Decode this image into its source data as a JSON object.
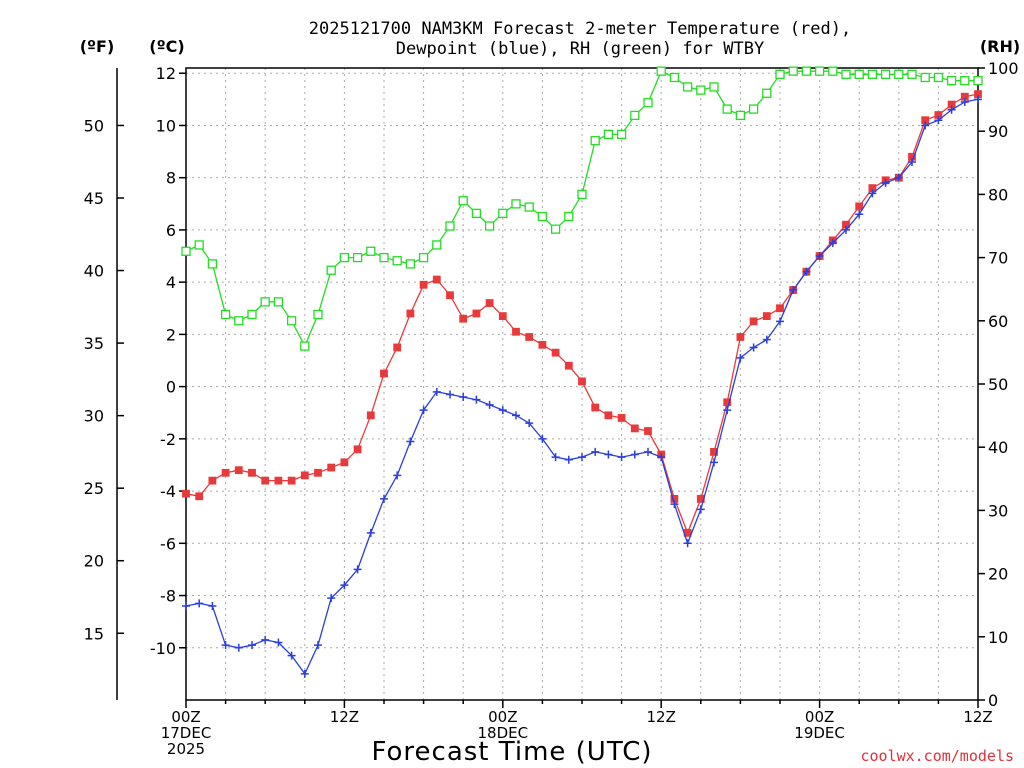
{
  "chart_data": {
    "type": "line",
    "title_line1": "2025121700 NAM3KM Forecast 2-meter Temperature (red),",
    "title_line2": "Dewpoint (blue), RH (green) for WTBY",
    "xlabel": "Forecast Time (UTC)",
    "credit": "coolwx.com/models",
    "units": {
      "fahrenheit": "(ºF)",
      "celsius": "(ºC)",
      "rh": "(RH)"
    },
    "xlim": [
      0,
      60
    ],
    "ylim_celsius": [
      -12,
      12.2
    ],
    "ylim_rh": [
      0,
      100
    ],
    "y_left_ticks": [
      "12",
      "10",
      "8",
      "6",
      "4",
      "2",
      "0",
      "-2",
      "-4",
      "-6",
      "-8",
      "-10"
    ],
    "y_left_tick_values": [
      12,
      10,
      8,
      6,
      4,
      2,
      0,
      -2,
      -4,
      -6,
      -8,
      -10
    ],
    "y_f_ticks": [
      "50",
      "45",
      "40",
      "35",
      "30",
      "25",
      "20",
      "15"
    ],
    "y_f_tick_values": [
      50,
      45,
      40,
      35,
      30,
      25,
      20,
      15
    ],
    "y_right_ticks": [
      "100",
      "90",
      "80",
      "70",
      "60",
      "50",
      "40",
      "30",
      "20",
      "10",
      "0"
    ],
    "y_right_tick_values": [
      100,
      90,
      80,
      70,
      60,
      50,
      40,
      30,
      20,
      10,
      0
    ],
    "x_ticks": [
      {
        "value": 0,
        "lines": [
          "00Z",
          "17DEC",
          "2025"
        ]
      },
      {
        "value": 12,
        "lines": [
          "12Z"
        ]
      },
      {
        "value": 24,
        "lines": [
          "00Z",
          "18DEC"
        ]
      },
      {
        "value": 36,
        "lines": [
          "12Z"
        ]
      },
      {
        "value": 48,
        "lines": [
          "00Z",
          "19DEC"
        ]
      },
      {
        "value": 60,
        "lines": [
          "12Z"
        ]
      }
    ],
    "series": [
      {
        "name": "Temperature",
        "color": "#e83a3a",
        "marker": "square-filled",
        "axis": "celsius",
        "x": [
          0,
          1,
          2,
          3,
          4,
          5,
          6,
          7,
          8,
          9,
          10,
          11,
          12,
          13,
          14,
          15,
          16,
          17,
          18,
          19,
          20,
          21,
          22,
          23,
          24,
          25,
          26,
          27,
          28,
          29,
          30,
          31,
          32,
          33,
          34,
          35,
          36,
          37,
          38,
          39,
          40,
          41,
          42,
          43,
          44,
          45,
          46,
          47,
          48,
          49,
          50,
          51,
          52,
          53,
          54,
          55,
          56,
          57,
          58,
          59,
          60
        ],
        "values": [
          -4.1,
          -4.2,
          -3.6,
          -3.3,
          -3.2,
          -3.3,
          -3.6,
          -3.6,
          -3.6,
          -3.4,
          -3.3,
          -3.1,
          -2.9,
          -2.4,
          -1.1,
          0.5,
          1.5,
          2.8,
          3.9,
          4.1,
          3.5,
          2.6,
          2.8,
          3.2,
          2.7,
          2.1,
          1.9,
          1.6,
          1.3,
          0.8,
          0.2,
          -0.8,
          -1.1,
          -1.2,
          -1.6,
          -1.7,
          -2.6,
          -4.3,
          -5.6,
          -4.3,
          -2.5,
          -0.6,
          1.9,
          2.5,
          2.7,
          3.0,
          3.7,
          4.4,
          5.0,
          5.6,
          6.2,
          6.9,
          7.6,
          7.9,
          8.0,
          8.8,
          10.2,
          10.4,
          10.8,
          11.1,
          11.2
        ]
      },
      {
        "name": "Dewpoint",
        "color": "#2a3ee0",
        "marker": "plus",
        "axis": "celsius",
        "x": [
          0,
          1,
          2,
          3,
          4,
          5,
          6,
          7,
          8,
          9,
          10,
          11,
          12,
          13,
          14,
          15,
          16,
          17,
          18,
          19,
          20,
          21,
          22,
          23,
          24,
          25,
          26,
          27,
          28,
          29,
          30,
          31,
          32,
          33,
          34,
          35,
          36,
          37,
          38,
          39,
          40,
          41,
          42,
          43,
          44,
          45,
          46,
          47,
          48,
          49,
          50,
          51,
          52,
          53,
          54,
          55,
          56,
          57,
          58,
          59,
          60
        ],
        "values": [
          -8.4,
          -8.3,
          -8.4,
          -9.9,
          -10.0,
          -9.9,
          -9.7,
          -9.8,
          -10.3,
          -11.0,
          -9.9,
          -8.1,
          -7.6,
          -7.0,
          -5.6,
          -4.3,
          -3.4,
          -2.1,
          -0.9,
          -0.2,
          -0.3,
          -0.4,
          -0.5,
          -0.7,
          -0.9,
          -1.1,
          -1.4,
          -2.0,
          -2.7,
          -2.8,
          -2.7,
          -2.5,
          -2.6,
          -2.7,
          -2.6,
          -2.5,
          -2.7,
          -4.5,
          -6.0,
          -4.7,
          -2.9,
          -0.9,
          1.1,
          1.5,
          1.8,
          2.5,
          3.7,
          4.4,
          5.0,
          5.5,
          6.0,
          6.6,
          7.4,
          7.8,
          8.0,
          8.6,
          10.0,
          10.2,
          10.6,
          10.9,
          11.0
        ]
      },
      {
        "name": "RH",
        "color": "#22dd22",
        "marker": "square-open",
        "axis": "rh",
        "x": [
          0,
          1,
          2,
          3,
          4,
          5,
          6,
          7,
          8,
          9,
          10,
          11,
          12,
          13,
          14,
          15,
          16,
          17,
          18,
          19,
          20,
          21,
          22,
          23,
          24,
          25,
          26,
          27,
          28,
          29,
          30,
          31,
          32,
          33,
          34,
          35,
          36,
          37,
          38,
          39,
          40,
          41,
          42,
          43,
          44,
          45,
          46,
          47,
          48,
          49,
          50,
          51,
          52,
          53,
          54,
          55,
          56,
          57,
          58,
          59,
          60
        ],
        "values": [
          71,
          72,
          69,
          61,
          60,
          61,
          63,
          63,
          60,
          56,
          61,
          68,
          70,
          70,
          71,
          70,
          69.5,
          69,
          70,
          72,
          75,
          79,
          77,
          75,
          77,
          78.5,
          78,
          76.5,
          74.5,
          76.5,
          80,
          88.5,
          89.5,
          89.5,
          92.5,
          94.5,
          99.5,
          98.5,
          97,
          96.5,
          97,
          93.5,
          92.5,
          93.5,
          96,
          99,
          99.5,
          99.5,
          99.5,
          99.5,
          99,
          99,
          99,
          99,
          99,
          99,
          98.5,
          98.5,
          98,
          98,
          98
        ]
      }
    ]
  }
}
